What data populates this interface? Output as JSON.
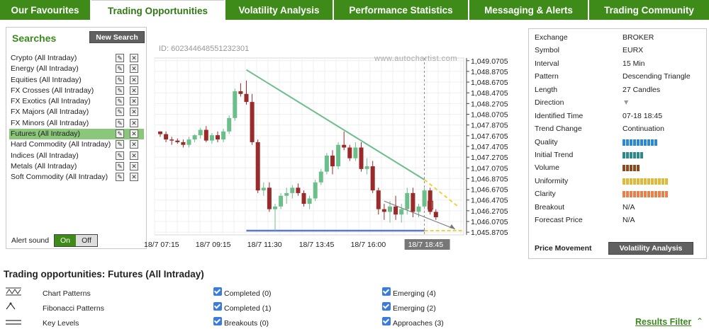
{
  "tabs": [
    {
      "label": "Our Favourites",
      "active": false
    },
    {
      "label": "Trading Opportunities",
      "active": true
    },
    {
      "label": "Volatility Analysis",
      "active": false
    },
    {
      "label": "Performance Statistics",
      "active": false
    },
    {
      "label": "Messaging & Alerts",
      "active": false
    },
    {
      "label": "Trading Community",
      "active": false
    }
  ],
  "searches": {
    "title": "Searches",
    "new_search": "New Search",
    "items": [
      {
        "label": "Crypto (All Intraday)",
        "active": false
      },
      {
        "label": "Energy (All Intraday)",
        "active": false
      },
      {
        "label": "Equities (All Intraday)",
        "active": false
      },
      {
        "label": "FX Crosses (All Intraday)",
        "active": false
      },
      {
        "label": "FX Exotics (All Intraday)",
        "active": false
      },
      {
        "label": "FX Majors (All Intraday)",
        "active": false
      },
      {
        "label": "FX Minors (All Intraday)",
        "active": false
      },
      {
        "label": "Futures (All Intraday)",
        "active": true
      },
      {
        "label": "Hard Commodity (All Intraday)",
        "active": false
      },
      {
        "label": "Indices (All Intraday)",
        "active": false
      },
      {
        "label": "Metals (All Intraday)",
        "active": false
      },
      {
        "label": "Soft Commodity (All Intraday)",
        "active": false
      }
    ],
    "alert_sound": "Alert sound",
    "on": "On",
    "off": "Off"
  },
  "chart": {
    "id_text": "ID: 602344648551232301",
    "watermark": "www.autochartist.com",
    "current_time": "18/7 18:45"
  },
  "chart_data": {
    "type": "candlestick",
    "x_ticks": [
      "18/7 07:15",
      "18/7 09:15",
      "18/7 11:30",
      "18/7 13:45",
      "18/7 16:00",
      "18/7 18:45"
    ],
    "y_ticks": [
      "1,049.0705",
      "1,048.8705",
      "1,048.6705",
      "1,048.4705",
      "1,048.2705",
      "1,048.0705",
      "1,047.8705",
      "1,047.6705",
      "1,047.4705",
      "1,047.2705",
      "1,047.0705",
      "1,046.8705",
      "1,046.6705",
      "1,046.4705",
      "1,046.2705",
      "1,046.0705",
      "1,045.8705"
    ],
    "ylim": [
      1045.82,
      1049.12
    ],
    "candles": [
      [
        1047.75,
        1047.75,
        1047.65,
        1047.7
      ],
      [
        1047.7,
        1047.75,
        1047.55,
        1047.6
      ],
      [
        1047.6,
        1047.65,
        1047.5,
        1047.58
      ],
      [
        1047.58,
        1047.62,
        1047.52,
        1047.55
      ],
      [
        1047.55,
        1047.6,
        1047.45,
        1047.5
      ],
      [
        1047.5,
        1047.65,
        1047.45,
        1047.6
      ],
      [
        1047.6,
        1047.7,
        1047.55,
        1047.68
      ],
      [
        1047.68,
        1047.82,
        1047.62,
        1047.78
      ],
      [
        1047.78,
        1047.85,
        1047.55,
        1047.58
      ],
      [
        1047.58,
        1047.72,
        1047.52,
        1047.68
      ],
      [
        1047.68,
        1047.75,
        1047.55,
        1047.6
      ],
      [
        1047.6,
        1047.8,
        1047.55,
        1047.75
      ],
      [
        1047.75,
        1048.05,
        1047.7,
        1048.0
      ],
      [
        1048.0,
        1048.55,
        1047.95,
        1048.5
      ],
      [
        1048.5,
        1048.65,
        1048.4,
        1048.45
      ],
      [
        1048.45,
        1048.7,
        1048.25,
        1048.3
      ],
      [
        1048.3,
        1048.45,
        1047.5,
        1047.55
      ],
      [
        1047.55,
        1047.6,
        1046.6,
        1046.65
      ],
      [
        1046.65,
        1046.8,
        1046.55,
        1046.7
      ],
      [
        1046.7,
        1046.8,
        1046.25,
        1046.3
      ],
      [
        1046.3,
        1046.4,
        1045.9,
        1046.35
      ],
      [
        1046.35,
        1046.6,
        1046.3,
        1046.55
      ],
      [
        1046.55,
        1046.7,
        1046.4,
        1046.6
      ],
      [
        1046.6,
        1046.75,
        1046.5,
        1046.7
      ],
      [
        1046.7,
        1046.78,
        1046.55,
        1046.6
      ],
      [
        1046.6,
        1046.65,
        1046.35,
        1046.4
      ],
      [
        1046.4,
        1046.55,
        1046.3,
        1046.5
      ],
      [
        1046.5,
        1046.85,
        1046.45,
        1046.8
      ],
      [
        1046.8,
        1047.05,
        1046.75,
        1047.0
      ],
      [
        1047.0,
        1047.35,
        1046.95,
        1047.3
      ],
      [
        1047.3,
        1047.4,
        1046.95,
        1047.1
      ],
      [
        1047.1,
        1047.55,
        1047.05,
        1047.5
      ],
      [
        1047.5,
        1047.75,
        1047.4,
        1047.45
      ],
      [
        1047.45,
        1047.5,
        1047.2,
        1047.25
      ],
      [
        1047.25,
        1047.55,
        1047.2,
        1047.45
      ],
      [
        1047.45,
        1047.55,
        1047.0,
        1047.05
      ],
      [
        1047.05,
        1047.25,
        1046.95,
        1047.1
      ],
      [
        1047.1,
        1047.2,
        1046.6,
        1046.65
      ],
      [
        1046.65,
        1046.7,
        1046.2,
        1046.3
      ],
      [
        1046.3,
        1046.4,
        1046.1,
        1046.25
      ],
      [
        1046.25,
        1046.45,
        1046.05,
        1046.35
      ],
      [
        1046.35,
        1046.55,
        1046.1,
        1046.2
      ],
      [
        1046.2,
        1046.4,
        1046.05,
        1046.3
      ],
      [
        1046.3,
        1046.7,
        1046.2,
        1046.6
      ],
      [
        1046.6,
        1046.7,
        1046.15,
        1046.25
      ],
      [
        1046.25,
        1046.4,
        1046.15,
        1046.35
      ],
      [
        1046.35,
        1046.7,
        1046.3,
        1046.65
      ],
      [
        1046.65,
        1046.7,
        1046.2,
        1046.25
      ],
      [
        1046.25,
        1046.3,
        1046.1,
        1046.15
      ]
    ],
    "colors": {
      "up": "#6cbf8a",
      "down": "#9b2a2a"
    },
    "resistance": [
      1048.9,
      1046.85
    ],
    "support": 1045.9,
    "projection": [
      1046.85,
      1046.35
    ],
    "forecast_box": [
      1046.45,
      1046.3
    ]
  },
  "details": {
    "rows": [
      {
        "key": "Exchange",
        "value": "BROKER"
      },
      {
        "key": "Symbol",
        "value": "EURX"
      },
      {
        "key": "Interval",
        "value": "15 Min"
      },
      {
        "key": "Pattern",
        "value": "Descending Triangle"
      },
      {
        "key": "Length",
        "value": "27 Candles"
      },
      {
        "key": "Direction",
        "value": "▼"
      },
      {
        "key": "Identified Time",
        "value": "07-18 18:45"
      },
      {
        "key": "Trend Change",
        "value": "Continuation"
      },
      {
        "key": "Quality",
        "value": ""
      },
      {
        "key": "Initial Trend",
        "value": ""
      },
      {
        "key": "Volume",
        "value": ""
      },
      {
        "key": "Uniformity",
        "value": ""
      },
      {
        "key": "Clarity",
        "value": ""
      },
      {
        "key": "Breakout",
        "value": "N/A"
      },
      {
        "key": "Forecast Price",
        "value": "N/A"
      }
    ],
    "bars": {
      "Quality": {
        "count": 10,
        "color": "#2a88d8"
      },
      "Initial Trend": {
        "count": 6,
        "color": "#2b8a8a"
      },
      "Volume": {
        "count": 5,
        "color": "#8b4a1e"
      },
      "Uniformity": {
        "count": 13,
        "color": "#e0b83a"
      },
      "Clarity": {
        "count": 13,
        "color": "#e8804a"
      }
    },
    "price_movement": "Price Movement",
    "volatility_btn": "Volatility Analysis"
  },
  "bottom": {
    "title": "Trading opportunities: Futures (All Intraday)",
    "types": [
      "Chart Patterns",
      "Fibonacci Patterns",
      "Key Levels"
    ],
    "col1": [
      "Completed (0)",
      "Completed (1)",
      "Breakouts (0)"
    ],
    "col2": [
      "Emerging (4)",
      "Emerging (2)",
      "Approaches (3)"
    ],
    "results_filter": "Results Filter"
  }
}
